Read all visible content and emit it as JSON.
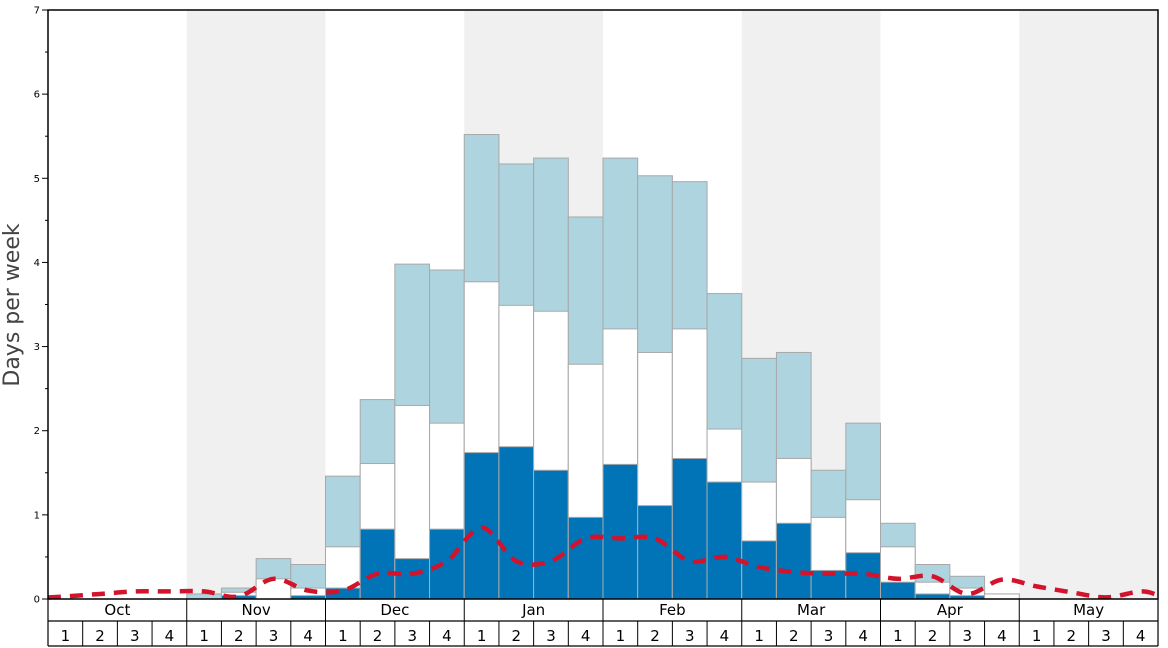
{
  "chart_data": {
    "type": "bar",
    "ylabel": "Days per week",
    "ylim": [
      0,
      7
    ],
    "y_ticks": [
      "0",
      "1",
      "2",
      "3",
      "4",
      "5",
      "6",
      "7"
    ],
    "months": [
      "Oct",
      "Nov",
      "Dec",
      "Jan",
      "Feb",
      "Mar",
      "Apr",
      "May"
    ],
    "weeks": [
      "1",
      "2",
      "3",
      "4"
    ],
    "grid": false,
    "alternating_month_shading": true,
    "colors": {
      "dark": "#0074b7",
      "mid": "#ffffff",
      "light": "#aed4e0",
      "line": "#d3122b",
      "shade": "#f0f0f0",
      "bar_border": "#a8a8a8"
    },
    "series": [
      {
        "values": [
          0,
          0,
          0,
          0,
          0,
          0.04,
          0,
          0.04,
          0.13,
          0.83,
          0.48,
          0.83,
          1.74,
          1.81,
          1.53,
          0.97,
          1.6,
          1.11,
          1.67,
          1.39,
          0.69,
          0.9,
          0.34,
          0.55,
          0.2,
          0.06,
          0.04,
          0,
          0,
          0,
          0,
          0
        ]
      },
      {
        "values": [
          0,
          0,
          0,
          0,
          0,
          0.08,
          0.24,
          0.13,
          0.62,
          1.61,
          2.3,
          2.09,
          3.77,
          3.49,
          3.42,
          2.79,
          3.21,
          2.93,
          3.21,
          2.02,
          1.39,
          1.67,
          0.97,
          1.18,
          0.62,
          0.2,
          0.13,
          0.06,
          0,
          0,
          0,
          0
        ]
      },
      {
        "values": [
          0,
          0,
          0,
          0,
          0.06,
          0.13,
          0.48,
          0.41,
          1.46,
          2.37,
          3.98,
          3.91,
          5.52,
          5.17,
          5.24,
          4.54,
          5.24,
          5.03,
          4.96,
          3.63,
          2.86,
          2.93,
          1.53,
          2.09,
          0.9,
          0.41,
          0.27,
          0.06,
          0,
          0,
          0,
          0
        ]
      },
      {
        "values": [
          0.03,
          0.06,
          0.09,
          0.09,
          0.09,
          0.03,
          0.24,
          0.1,
          0.1,
          0.3,
          0.3,
          0.45,
          0.85,
          0.45,
          0.45,
          0.72,
          0.72,
          0.72,
          0.45,
          0.5,
          0.38,
          0.32,
          0.3,
          0.3,
          0.24,
          0.27,
          0.06,
          0.23,
          0.15,
          0.08,
          0.02,
          0.09
        ]
      }
    ]
  }
}
